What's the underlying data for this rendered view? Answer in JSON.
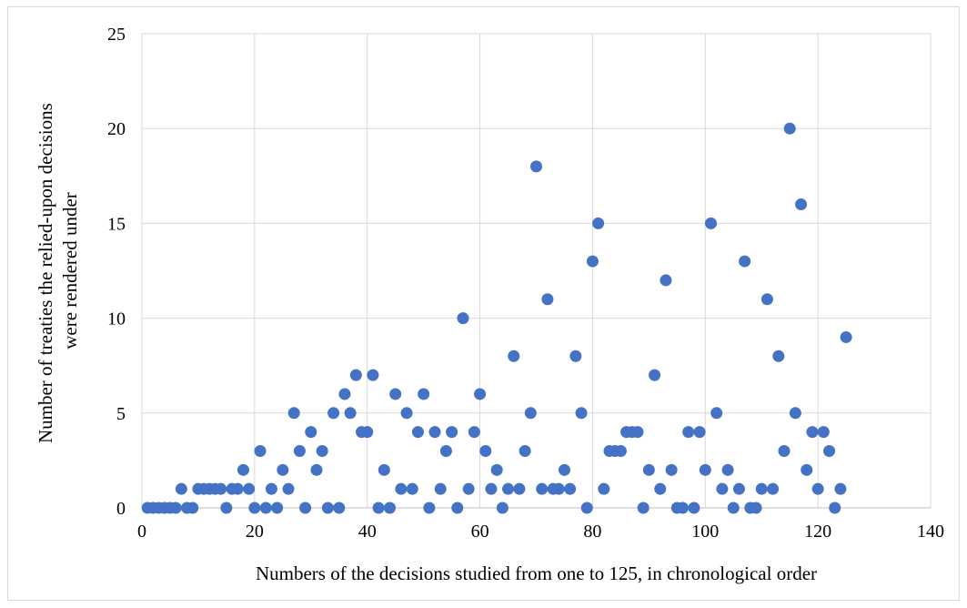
{
  "chart_data": {
    "type": "scatter",
    "title": "",
    "xlabel": "Numbers of the decisions studied from one to 125, in chronological order",
    "ylabel": "Number of treaties the relied-upon decisions were rendered under",
    "ylabel_lines": [
      "Number of treaties the relied-upon decisions",
      "were rendered under"
    ],
    "xlim": [
      0,
      140
    ],
    "ylim": [
      0,
      25
    ],
    "xticks": [
      "0",
      "20",
      "40",
      "60",
      "80",
      "100",
      "120",
      "140"
    ],
    "yticks": [
      "0",
      "5",
      "10",
      "15",
      "20",
      "25"
    ],
    "grid": true,
    "legend": "none",
    "marker_color": "#4472c4",
    "x": [
      1,
      2,
      3,
      4,
      5,
      6,
      7,
      8,
      9,
      10,
      11,
      12,
      13,
      14,
      15,
      16,
      17,
      18,
      19,
      20,
      21,
      22,
      23,
      24,
      25,
      26,
      27,
      28,
      29,
      30,
      31,
      32,
      33,
      34,
      35,
      36,
      37,
      38,
      39,
      40,
      41,
      42,
      43,
      44,
      45,
      46,
      47,
      48,
      49,
      50,
      51,
      52,
      53,
      54,
      55,
      56,
      57,
      58,
      59,
      60,
      61,
      62,
      63,
      64,
      65,
      66,
      67,
      68,
      69,
      70,
      71,
      72,
      73,
      74,
      75,
      76,
      77,
      78,
      79,
      80,
      81,
      82,
      83,
      84,
      85,
      86,
      87,
      88,
      89,
      90,
      91,
      92,
      93,
      94,
      95,
      96,
      97,
      98,
      99,
      100,
      101,
      102,
      103,
      104,
      105,
      106,
      107,
      108,
      109,
      110,
      111,
      112,
      113,
      114,
      115,
      116,
      117,
      118,
      119,
      120,
      121,
      122,
      123,
      124,
      125
    ],
    "y": [
      0,
      0,
      0,
      0,
      0,
      0,
      1,
      0,
      0,
      1,
      1,
      1,
      1,
      1,
      0,
      1,
      1,
      2,
      1,
      0,
      3,
      0,
      1,
      0,
      2,
      1,
      5,
      3,
      0,
      4,
      2,
      3,
      0,
      5,
      0,
      6,
      5,
      7,
      4,
      4,
      7,
      0,
      2,
      0,
      6,
      1,
      5,
      1,
      4,
      6,
      0,
      4,
      1,
      3,
      4,
      0,
      10,
      1,
      4,
      6,
      3,
      1,
      2,
      0,
      1,
      8,
      1,
      3,
      5,
      18,
      1,
      11,
      1,
      1,
      2,
      1,
      8,
      5,
      0,
      13,
      15,
      1,
      3,
      3,
      3,
      4,
      4,
      4,
      0,
      2,
      7,
      1,
      12,
      2,
      0,
      0,
      4,
      0,
      4,
      2,
      15,
      5,
      1,
      2,
      0,
      1,
      13,
      0,
      0,
      1,
      11,
      1,
      8,
      3,
      20,
      5,
      16,
      2,
      4,
      1,
      4,
      3,
      0,
      1,
      9
    ]
  }
}
